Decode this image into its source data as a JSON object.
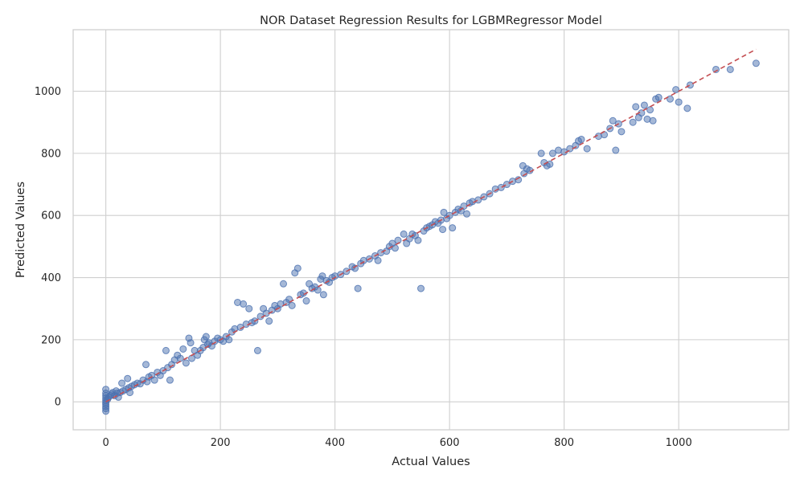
{
  "chart_data": {
    "type": "scatter",
    "title": "NOR Dataset Regression Results for LGBMRegressor Model",
    "xlabel": "Actual Values",
    "ylabel": "Predicted Values",
    "xlim": [
      -57,
      1192
    ],
    "ylim": [
      -90,
      1198
    ],
    "xticks": [
      0,
      200,
      400,
      600,
      800,
      1000
    ],
    "yticks": [
      0,
      200,
      400,
      600,
      800,
      1000
    ],
    "xtick_labels": [
      "0",
      "200",
      "400",
      "600",
      "800",
      "1000"
    ],
    "ytick_labels": [
      "0",
      "200",
      "400",
      "600",
      "800",
      "1000"
    ],
    "grid": true,
    "series": [
      {
        "marker": "circle",
        "color": "#4c72b0",
        "points": [
          [
            0,
            -30
          ],
          [
            0,
            -22
          ],
          [
            0,
            -15
          ],
          [
            0,
            -8
          ],
          [
            0,
            -2
          ],
          [
            0,
            5
          ],
          [
            0,
            12
          ],
          [
            0,
            20
          ],
          [
            0,
            28
          ],
          [
            0,
            40
          ],
          [
            3,
            8
          ],
          [
            5,
            15
          ],
          [
            8,
            20
          ],
          [
            10,
            25
          ],
          [
            12,
            30
          ],
          [
            15,
            20
          ],
          [
            18,
            35
          ],
          [
            20,
            28
          ],
          [
            22,
            15
          ],
          [
            25,
            30
          ],
          [
            28,
            60
          ],
          [
            30,
            35
          ],
          [
            35,
            40
          ],
          [
            38,
            75
          ],
          [
            40,
            45
          ],
          [
            42,
            30
          ],
          [
            45,
            50
          ],
          [
            50,
            55
          ],
          [
            55,
            60
          ],
          [
            60,
            58
          ],
          [
            65,
            70
          ],
          [
            70,
            120
          ],
          [
            72,
            65
          ],
          [
            75,
            80
          ],
          [
            80,
            85
          ],
          [
            85,
            70
          ],
          [
            90,
            95
          ],
          [
            95,
            85
          ],
          [
            100,
            100
          ],
          [
            105,
            165
          ],
          [
            108,
            110
          ],
          [
            112,
            70
          ],
          [
            115,
            120
          ],
          [
            120,
            135
          ],
          [
            125,
            150
          ],
          [
            130,
            140
          ],
          [
            135,
            170
          ],
          [
            140,
            125
          ],
          [
            145,
            205
          ],
          [
            148,
            190
          ],
          [
            150,
            140
          ],
          [
            155,
            165
          ],
          [
            160,
            150
          ],
          [
            165,
            165
          ],
          [
            170,
            175
          ],
          [
            172,
            200
          ],
          [
            175,
            210
          ],
          [
            178,
            185
          ],
          [
            180,
            190
          ],
          [
            185,
            180
          ],
          [
            190,
            195
          ],
          [
            195,
            205
          ],
          [
            200,
            200
          ],
          [
            205,
            195
          ],
          [
            210,
            210
          ],
          [
            215,
            200
          ],
          [
            220,
            225
          ],
          [
            225,
            235
          ],
          [
            230,
            320
          ],
          [
            235,
            240
          ],
          [
            240,
            315
          ],
          [
            245,
            250
          ],
          [
            250,
            300
          ],
          [
            255,
            255
          ],
          [
            260,
            260
          ],
          [
            265,
            165
          ],
          [
            270,
            275
          ],
          [
            275,
            300
          ],
          [
            280,
            285
          ],
          [
            285,
            260
          ],
          [
            290,
            295
          ],
          [
            295,
            310
          ],
          [
            300,
            300
          ],
          [
            305,
            315
          ],
          [
            310,
            380
          ],
          [
            315,
            320
          ],
          [
            320,
            330
          ],
          [
            325,
            310
          ],
          [
            330,
            415
          ],
          [
            335,
            430
          ],
          [
            340,
            345
          ],
          [
            345,
            350
          ],
          [
            350,
            325
          ],
          [
            355,
            380
          ],
          [
            360,
            365
          ],
          [
            365,
            370
          ],
          [
            370,
            360
          ],
          [
            375,
            395
          ],
          [
            378,
            405
          ],
          [
            380,
            345
          ],
          [
            385,
            390
          ],
          [
            390,
            385
          ],
          [
            395,
            400
          ],
          [
            400,
            405
          ],
          [
            410,
            410
          ],
          [
            420,
            420
          ],
          [
            430,
            435
          ],
          [
            435,
            430
          ],
          [
            440,
            365
          ],
          [
            445,
            445
          ],
          [
            450,
            455
          ],
          [
            460,
            460
          ],
          [
            470,
            470
          ],
          [
            475,
            455
          ],
          [
            480,
            480
          ],
          [
            490,
            485
          ],
          [
            495,
            500
          ],
          [
            500,
            510
          ],
          [
            505,
            495
          ],
          [
            510,
            520
          ],
          [
            520,
            540
          ],
          [
            525,
            510
          ],
          [
            530,
            525
          ],
          [
            535,
            540
          ],
          [
            540,
            535
          ],
          [
            545,
            520
          ],
          [
            550,
            365
          ],
          [
            555,
            550
          ],
          [
            560,
            560
          ],
          [
            565,
            565
          ],
          [
            570,
            570
          ],
          [
            575,
            580
          ],
          [
            580,
            575
          ],
          [
            585,
            585
          ],
          [
            588,
            555
          ],
          [
            590,
            610
          ],
          [
            595,
            590
          ],
          [
            600,
            600
          ],
          [
            605,
            560
          ],
          [
            610,
            610
          ],
          [
            615,
            620
          ],
          [
            620,
            615
          ],
          [
            625,
            630
          ],
          [
            630,
            605
          ],
          [
            635,
            640
          ],
          [
            640,
            645
          ],
          [
            650,
            650
          ],
          [
            660,
            660
          ],
          [
            670,
            670
          ],
          [
            680,
            685
          ],
          [
            690,
            690
          ],
          [
            700,
            700
          ],
          [
            710,
            710
          ],
          [
            720,
            715
          ],
          [
            728,
            760
          ],
          [
            730,
            735
          ],
          [
            735,
            750
          ],
          [
            740,
            745
          ],
          [
            760,
            800
          ],
          [
            765,
            770
          ],
          [
            770,
            760
          ],
          [
            775,
            765
          ],
          [
            780,
            800
          ],
          [
            790,
            810
          ],
          [
            800,
            805
          ],
          [
            810,
            815
          ],
          [
            820,
            825
          ],
          [
            825,
            840
          ],
          [
            830,
            845
          ],
          [
            840,
            815
          ],
          [
            860,
            855
          ],
          [
            870,
            860
          ],
          [
            880,
            880
          ],
          [
            885,
            905
          ],
          [
            890,
            810
          ],
          [
            895,
            895
          ],
          [
            900,
            870
          ],
          [
            920,
            900
          ],
          [
            925,
            950
          ],
          [
            930,
            915
          ],
          [
            935,
            930
          ],
          [
            940,
            955
          ],
          [
            945,
            910
          ],
          [
            950,
            940
          ],
          [
            955,
            905
          ],
          [
            960,
            975
          ],
          [
            965,
            980
          ],
          [
            985,
            975
          ],
          [
            995,
            1005
          ],
          [
            1000,
            965
          ],
          [
            1015,
            945
          ],
          [
            1020,
            1020
          ],
          [
            1065,
            1070
          ],
          [
            1090,
            1070
          ],
          [
            1135,
            1090
          ]
        ]
      }
    ],
    "reference_line": {
      "style": "dashed",
      "color": "#c44e52",
      "from": [
        0,
        0
      ],
      "to": [
        1135,
        1135
      ]
    }
  }
}
